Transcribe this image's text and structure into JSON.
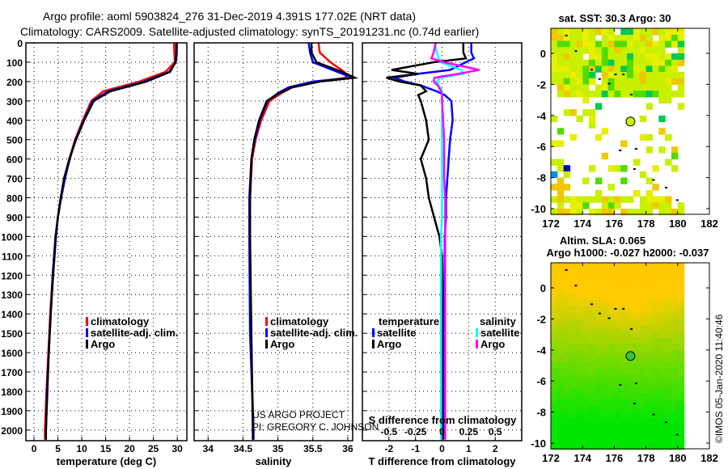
{
  "title_line1": "Argo profile: aoml 5903824_276 31-Dec-2019 4.391S 177.02E (NRT data)",
  "title_line2": "Climatology: CARS2009. Satellite-adjusted climatology: synTS_20191231.nc (0.74d earlier)",
  "credits": {
    "line1": "US ARGO PROJECT",
    "line2": "PI: GREGORY C. JOHNSON",
    "imos": "©IMOS 05-Jan-2020 11:40:46"
  },
  "colors": {
    "climatology": "#ff0000",
    "satellite": "#0000ff",
    "argo": "#000000",
    "sal_satellite": "#00ffff",
    "sal_argo": "#ff00ff"
  },
  "chart_data": [
    {
      "type": "line",
      "name": "temperature",
      "xlabel": "temperature (deg C)",
      "xlim": [
        -1.7,
        32
      ],
      "ylim": [
        2055,
        0
      ],
      "xticks": [
        0,
        5,
        10,
        15,
        20,
        25,
        30
      ],
      "yticks": [
        0,
        100,
        200,
        300,
        400,
        500,
        600,
        700,
        800,
        900,
        1000,
        1100,
        1200,
        1300,
        1400,
        1500,
        1600,
        1700,
        1800,
        1900,
        2000
      ],
      "legend": [
        "climatology",
        "satellite-adj. clim.",
        "Argo"
      ],
      "legend_placement": "center-right",
      "depth": [
        0,
        50,
        100,
        150,
        200,
        250,
        300,
        400,
        500,
        600,
        700,
        800,
        900,
        1000,
        1200,
        1400,
        1600,
        1800,
        2000,
        2050
      ],
      "series": [
        {
          "name": "climatology",
          "color": "#ff0000",
          "values": [
            29.3,
            29.4,
            29.5,
            27.5,
            22,
            14.5,
            12,
            10.2,
            8.6,
            7.4,
            6.4,
            5.6,
            5.0,
            4.5,
            3.9,
            3.4,
            3.0,
            2.6,
            2.3,
            2.3
          ]
        },
        {
          "name": "satellite-adj. clim.",
          "color": "#0000ff",
          "values": [
            29.9,
            29.9,
            29.7,
            28.3,
            23,
            15.5,
            12.3,
            10.4,
            8.7,
            7.5,
            6.5,
            5.7,
            5.0,
            4.5,
            3.9,
            3.5,
            3.1,
            2.7,
            2.5,
            2.5
          ]
        },
        {
          "name": "Argo",
          "color": "#000000",
          "values": [
            29.8,
            29.8,
            29.6,
            28.5,
            23.5,
            16,
            12.5,
            10.5,
            8.8,
            7.4,
            6.3,
            5.6,
            5.0,
            4.6,
            4.0,
            3.5,
            3.1,
            2.8,
            2.5,
            2.5
          ]
        }
      ]
    },
    {
      "type": "line",
      "name": "salinity",
      "xlabel": "salinity",
      "xlim": [
        33.8,
        36.07
      ],
      "ylim": [
        2055,
        0
      ],
      "xticks": [
        34,
        34.5,
        35,
        35.5,
        36
      ],
      "legend": [
        "climatology",
        "satellite-adj. clim.",
        "Argo"
      ],
      "legend_placement": "center-right",
      "depth": [
        0,
        50,
        100,
        150,
        180,
        200,
        230,
        260,
        300,
        400,
        500,
        600,
        800,
        1000,
        1500,
        2000,
        2050
      ],
      "series": [
        {
          "name": "climatology",
          "color": "#ff0000",
          "values": [
            35.58,
            35.6,
            35.75,
            35.95,
            35.98,
            35.55,
            35.2,
            35.05,
            34.88,
            34.76,
            34.68,
            34.63,
            34.6,
            34.6,
            34.61,
            34.65,
            34.65
          ]
        },
        {
          "name": "satellite-adj. clim.",
          "color": "#0000ff",
          "values": [
            35.44,
            35.46,
            35.5,
            35.85,
            36.07,
            35.5,
            35.15,
            35.0,
            34.85,
            34.74,
            34.67,
            34.62,
            34.59,
            34.59,
            34.6,
            34.65,
            34.65
          ]
        },
        {
          "name": "Argo",
          "color": "#000000",
          "values": [
            35.48,
            35.48,
            35.55,
            35.92,
            36.1,
            35.6,
            35.2,
            35.02,
            34.84,
            34.73,
            34.66,
            34.62,
            34.6,
            34.6,
            34.62,
            34.64,
            34.64
          ]
        }
      ]
    },
    {
      "type": "line",
      "name": "difference",
      "xlabel": "T difference from climatology",
      "xlabel_top": "S difference from climatology",
      "xlim": [
        -3,
        3
      ],
      "xlim_s": [
        -0.75,
        0.75
      ],
      "xticks": [
        -2,
        -1,
        0,
        1,
        2
      ],
      "xticks_s": [
        -0.5,
        -0.25,
        0,
        0.25,
        0.5
      ],
      "legend_t": {
        "title": "temperature",
        "items": [
          "satellite",
          "Argo"
        ]
      },
      "legend_s": {
        "title": "salinity",
        "items": [
          "satellite",
          "Argo"
        ]
      },
      "depth": [
        0,
        50,
        80,
        100,
        140,
        160,
        180,
        200,
        220,
        250,
        270,
        300,
        400,
        500,
        600,
        700,
        800,
        900,
        1000,
        1100,
        1500,
        2000,
        2050
      ],
      "series": [
        {
          "name": "temperature satellite",
          "axis": "T",
          "color": "#0000ff",
          "values": [
            1.1,
            1.1,
            1.2,
            0.9,
            0.3,
            -0.9,
            -1.8,
            -1.4,
            -0.8,
            -0.2,
            0.1,
            0.35,
            0.4,
            0.3,
            0.25,
            0.2,
            0.15,
            0.15,
            0.1,
            0.1,
            0.05,
            0.05,
            0.05
          ]
        },
        {
          "name": "temperature Argo",
          "axis": "T",
          "color": "#000000",
          "values": [
            0.8,
            0.8,
            0.9,
            -0.3,
            -1.9,
            -0.9,
            -2.1,
            -1.6,
            -0.8,
            -0.6,
            -0.9,
            -0.8,
            -0.6,
            -0.5,
            -0.8,
            -0.6,
            -0.5,
            -0.3,
            -0.1,
            0,
            0,
            0,
            0
          ]
        },
        {
          "name": "salinity satellite",
          "axis": "S",
          "color": "#00ffff",
          "values": [
            -0.07,
            -0.05,
            -0.03,
            -0.01,
            0.18,
            0.2,
            -0.02,
            -0.05,
            -0.03,
            0,
            0,
            0,
            0,
            0,
            0,
            0,
            0,
            0,
            -0.01,
            -0.01,
            -0.01,
            -0.01,
            -0.01
          ]
        },
        {
          "name": "salinity Argo",
          "axis": "S",
          "color": "#ff00ff",
          "values": [
            -0.06,
            -0.08,
            -0.1,
            0.02,
            0.35,
            0.15,
            -0.07,
            -0.08,
            -0.04,
            -0.01,
            0,
            0,
            0.01,
            0.02,
            0.02,
            0.02,
            0.03,
            0.03,
            0.03,
            0.03,
            0.03,
            0.03,
            0.03
          ]
        }
      ]
    },
    {
      "type": "heatmap",
      "name": "sst-map",
      "title": "sat. SST: 30.3 Argo: 30",
      "xlim": [
        172,
        182
      ],
      "ylim": [
        -10.3,
        1.6
      ],
      "xticks": [
        172,
        174,
        176,
        178,
        180,
        182
      ],
      "yticks": [
        0,
        -2,
        -4,
        -6,
        -8,
        -10
      ],
      "marker": {
        "lon": 177.02,
        "lat": -4.391
      }
    },
    {
      "type": "heatmap",
      "name": "sla-map",
      "title": "Altim. SLA: 0.065",
      "subtitle": "Argo h1000: -0.027 h2000: -0.037",
      "xlim": [
        172,
        182
      ],
      "ylim": [
        -10.3,
        1.6
      ],
      "xticks": [
        172,
        174,
        176,
        178,
        180,
        182
      ],
      "yticks": [
        0,
        -2,
        -4,
        -6,
        -8,
        -10
      ],
      "marker": {
        "lon": 177.02,
        "lat": -4.391
      }
    }
  ]
}
